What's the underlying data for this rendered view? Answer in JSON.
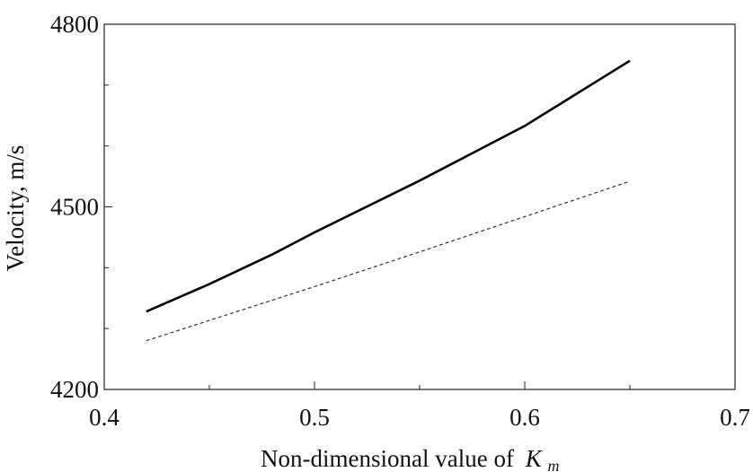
{
  "chart_data": {
    "type": "line",
    "xlabel": "Non-dimensional value of",
    "xlabel_symbol": "K",
    "xlabel_subscript": "m",
    "ylabel": "Velocity, m/s",
    "xlim": [
      0.4,
      0.7
    ],
    "ylim": [
      4200,
      4800
    ],
    "x_ticks": [
      "0.4",
      "0.5",
      "0.6",
      "0.7"
    ],
    "y_ticks": [
      "4200",
      "4500",
      "4800"
    ],
    "grid": false,
    "series": [
      {
        "style": "solid",
        "color": "#000000",
        "x": [
          0.42,
          0.45,
          0.48,
          0.5,
          0.55,
          0.6,
          0.65
        ],
        "y": [
          4328,
          4373,
          4422,
          4458,
          4543,
          4633,
          4740
        ]
      },
      {
        "style": "dashed",
        "color": "#333333",
        "x": [
          0.42,
          0.5,
          0.55,
          0.6,
          0.65
        ],
        "y": [
          4280,
          4369,
          4426,
          4484,
          4542
        ]
      }
    ]
  }
}
